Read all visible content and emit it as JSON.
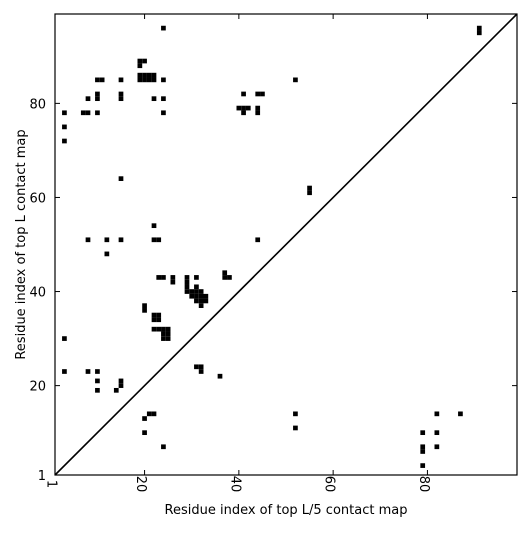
{
  "chart_data": {
    "type": "heatmap",
    "title": "",
    "xlabel": "Residue index of top L/5 contact map",
    "ylabel": "Residue index of top L contact map",
    "xlim": [
      1,
      99
    ],
    "ylim": [
      1,
      99
    ],
    "xticks": [
      1,
      20,
      40,
      60,
      80
    ],
    "yticks": [
      1,
      20,
      40,
      60,
      80
    ],
    "diagonal_line": true,
    "grid": false,
    "legend": "none",
    "colors": {
      "contact": "#000000",
      "background": "#ffffff",
      "axis": "#000000"
    },
    "contacts": [
      [
        24,
        96
      ],
      [
        91,
        96
      ],
      [
        91,
        95
      ],
      [
        19,
        89
      ],
      [
        20,
        89
      ],
      [
        19,
        88
      ],
      [
        19,
        86
      ],
      [
        20,
        86
      ],
      [
        21,
        86
      ],
      [
        22,
        86
      ],
      [
        19,
        85
      ],
      [
        20,
        85
      ],
      [
        21,
        85
      ],
      [
        22,
        85
      ],
      [
        10,
        85
      ],
      [
        11,
        85
      ],
      [
        15,
        85
      ],
      [
        24,
        85
      ],
      [
        52,
        85
      ],
      [
        41,
        82
      ],
      [
        44,
        82
      ],
      [
        45,
        82
      ],
      [
        8,
        81
      ],
      [
        10,
        81
      ],
      [
        15,
        81
      ],
      [
        22,
        81
      ],
      [
        24,
        81
      ],
      [
        10,
        82
      ],
      [
        15,
        82
      ],
      [
        40,
        79
      ],
      [
        41,
        79
      ],
      [
        42,
        79
      ],
      [
        44,
        79
      ],
      [
        3,
        78
      ],
      [
        7,
        78
      ],
      [
        8,
        78
      ],
      [
        10,
        78
      ],
      [
        24,
        78
      ],
      [
        41,
        78
      ],
      [
        44,
        78
      ],
      [
        3,
        75
      ],
      [
        3,
        72
      ],
      [
        15,
        64
      ],
      [
        55,
        62
      ],
      [
        55,
        61
      ],
      [
        22,
        54
      ],
      [
        8,
        51
      ],
      [
        12,
        51
      ],
      [
        15,
        51
      ],
      [
        22,
        51
      ],
      [
        23,
        51
      ],
      [
        44,
        51
      ],
      [
        12,
        48
      ],
      [
        37,
        44
      ],
      [
        37,
        43
      ],
      [
        38,
        43
      ],
      [
        23,
        43
      ],
      [
        24,
        43
      ],
      [
        26,
        43
      ],
      [
        29,
        43
      ],
      [
        31,
        43
      ],
      [
        26,
        42
      ],
      [
        29,
        42
      ],
      [
        29,
        41
      ],
      [
        31,
        41
      ],
      [
        29,
        40
      ],
      [
        30,
        40
      ],
      [
        31,
        40
      ],
      [
        32,
        40
      ],
      [
        30,
        39
      ],
      [
        31,
        39
      ],
      [
        32,
        39
      ],
      [
        33,
        39
      ],
      [
        31,
        38
      ],
      [
        32,
        38
      ],
      [
        33,
        38
      ],
      [
        32,
        37
      ],
      [
        20,
        37
      ],
      [
        20,
        36
      ],
      [
        22,
        35
      ],
      [
        23,
        35
      ],
      [
        22,
        34
      ],
      [
        23,
        34
      ],
      [
        22,
        32
      ],
      [
        23,
        32
      ],
      [
        24,
        32
      ],
      [
        25,
        32
      ],
      [
        24,
        31
      ],
      [
        25,
        31
      ],
      [
        24,
        30
      ],
      [
        25,
        30
      ],
      [
        3,
        30
      ],
      [
        31,
        24
      ],
      [
        32,
        24
      ],
      [
        32,
        23
      ],
      [
        3,
        23
      ],
      [
        8,
        23
      ],
      [
        10,
        23
      ],
      [
        36,
        22
      ],
      [
        10,
        21
      ],
      [
        15,
        21
      ],
      [
        15,
        20
      ],
      [
        10,
        19
      ],
      [
        14,
        19
      ],
      [
        21,
        14
      ],
      [
        22,
        14
      ],
      [
        52,
        14
      ],
      [
        82,
        14
      ],
      [
        87,
        14
      ],
      [
        20,
        13
      ],
      [
        52,
        11
      ],
      [
        20,
        10
      ],
      [
        79,
        10
      ],
      [
        82,
        10
      ],
      [
        24,
        7
      ],
      [
        79,
        7
      ],
      [
        82,
        7
      ],
      [
        79,
        6
      ],
      [
        79,
        3
      ]
    ]
  }
}
